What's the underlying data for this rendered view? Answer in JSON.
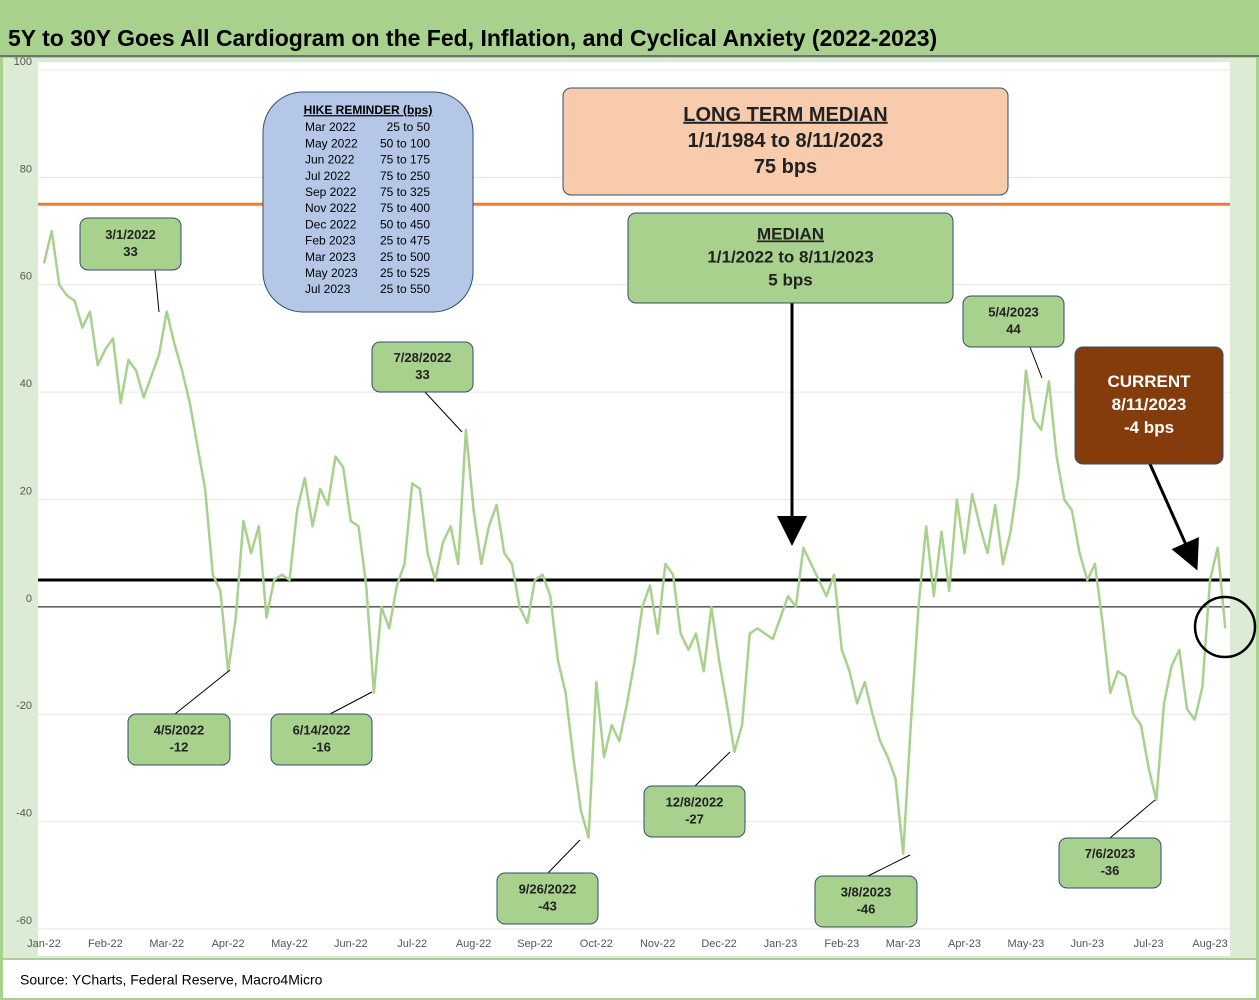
{
  "chart_data": {
    "type": "line",
    "title": "5Y to 30Y Goes All Cardiogram on the Fed, Inflation, and Cyclical Anxiety (2022-2023)",
    "source": "Source: YCharts, Federal Reserve, Macro4Micro",
    "categories": [
      "Jan-22",
      null,
      null,
      null,
      null,
      null,
      null,
      null,
      "Feb-22",
      null,
      null,
      null,
      null,
      null,
      null,
      null,
      "Mar-22",
      null,
      null,
      null,
      null,
      null,
      null,
      null,
      "Apr-22",
      null,
      null,
      null,
      null,
      null,
      null,
      null,
      "May-22",
      null,
      null,
      null,
      null,
      null,
      null,
      null,
      "Jun-22",
      null,
      null,
      null,
      null,
      null,
      null,
      null,
      "Jul-22",
      null,
      null,
      null,
      null,
      null,
      null,
      null,
      "Aug-22",
      null,
      null,
      null,
      null,
      null,
      null,
      null,
      "Sep-22",
      null,
      null,
      null,
      null,
      null,
      null,
      null,
      "Oct-22",
      null,
      null,
      null,
      null,
      null,
      null,
      null,
      "Nov-22",
      null,
      null,
      null,
      null,
      null,
      null,
      null,
      "Dec-22",
      null,
      null,
      null,
      null,
      null,
      null,
      null,
      "Jan-23",
      null,
      null,
      null,
      null,
      null,
      null,
      null,
      "Feb-23",
      null,
      null,
      null,
      null,
      null,
      null,
      null,
      "Mar-23",
      null,
      null,
      null,
      null,
      null,
      null,
      null,
      "Apr-23",
      null,
      null,
      null,
      null,
      null,
      null,
      null,
      "May-23",
      null,
      null,
      null,
      null,
      null,
      null,
      null,
      "Jun-23",
      null,
      null,
      null,
      null,
      null,
      null,
      null,
      "Jul-23",
      null,
      null,
      null,
      null,
      null,
      null,
      null,
      "Aug-23",
      null,
      null
    ],
    "series": [
      {
        "color": "#a9d18e",
        "values": [
          64,
          70,
          60,
          58,
          57,
          52,
          55,
          45,
          48,
          50,
          38,
          46,
          44,
          39,
          43,
          47,
          55,
          49,
          44,
          38,
          30,
          22,
          6,
          3,
          -12,
          -2,
          16,
          10,
          15,
          -2,
          5,
          6,
          5,
          18,
          24,
          15,
          22,
          19,
          28,
          26,
          16,
          15,
          4,
          -16,
          0,
          -4,
          4,
          8,
          23,
          22,
          10,
          5,
          12,
          15,
          8,
          33,
          18,
          8,
          15,
          19,
          10,
          8,
          0,
          -3,
          5,
          6,
          2,
          -10,
          -16,
          -28,
          -38,
          -43,
          -14,
          -28,
          -22,
          -25,
          -18,
          -10,
          0,
          4,
          -5,
          8,
          6,
          -5,
          -8,
          -5,
          -12,
          0,
          -10,
          -18,
          -27,
          -22,
          -5,
          -4,
          -5,
          -6,
          -2,
          2,
          0,
          11,
          8,
          5,
          2,
          6,
          -8,
          -12,
          -18,
          -14,
          -20,
          -25,
          -28,
          -32,
          -46,
          -22,
          0,
          15,
          2,
          14,
          3,
          20,
          10,
          21,
          15,
          10,
          19,
          8,
          14,
          24,
          44,
          35,
          33,
          42,
          28,
          20,
          18,
          10,
          5,
          8,
          -3,
          -16,
          -12,
          -13,
          -20,
          -22,
          -30,
          -36,
          -18,
          -11,
          -8,
          -19,
          -21,
          -15,
          5,
          11,
          -4
        ]
      }
    ],
    "ylim": [
      -60,
      100
    ],
    "yticks": [
      -60,
      -40,
      -20,
      0,
      20,
      40,
      60,
      80,
      100
    ],
    "grid": true,
    "reference_lines": [
      {
        "value": 75,
        "color": "#ed7d31"
      },
      {
        "value": 5,
        "color": "#000000"
      }
    ],
    "annotations": [
      {
        "lines": [
          "3/1/2022",
          "33"
        ]
      },
      {
        "lines": [
          "4/5/2022",
          "-12"
        ]
      },
      {
        "lines": [
          "6/14/2022",
          "-16"
        ]
      },
      {
        "lines": [
          "7/28/2022",
          "33"
        ]
      },
      {
        "lines": [
          "9/26/2022",
          "-43"
        ]
      },
      {
        "lines": [
          "12/8/2022",
          "-27"
        ]
      },
      {
        "lines": [
          "3/8/2023",
          "-46"
        ]
      },
      {
        "lines": [
          "5/4/2023",
          "44"
        ]
      },
      {
        "lines": [
          "7/6/2023",
          "-36"
        ]
      },
      {
        "lines": [
          "CURRENT",
          "8/11/2023",
          "-4 bps"
        ]
      },
      {
        "lines": [
          "MEDIAN",
          "1/1/2022 to 8/11/2023",
          "5 bps"
        ]
      },
      {
        "lines": [
          "LONG TERM MEDIAN",
          "1/1/1984 to 8/11/2023",
          "75 bps"
        ]
      }
    ],
    "hike_reminder": {
      "title": "HIKE REMINDER (bps)",
      "rows": [
        [
          "Mar 2022",
          "25 to 50"
        ],
        [
          "May 2022",
          "50 to 100"
        ],
        [
          "Jun 2022",
          "75 to 175"
        ],
        [
          "Jul 2022",
          "75 to 250"
        ],
        [
          "Sep 2022",
          "75 to 325"
        ],
        [
          "Nov 2022",
          "75 to 400"
        ],
        [
          "Dec 2022",
          "50 to 450"
        ],
        [
          "Feb 2023",
          "25 to 475"
        ],
        [
          "Mar 2023",
          "25 to 500"
        ],
        [
          "May 2023",
          "25 to 525"
        ],
        [
          "Jul 2023",
          "25 to 550"
        ]
      ]
    }
  }
}
